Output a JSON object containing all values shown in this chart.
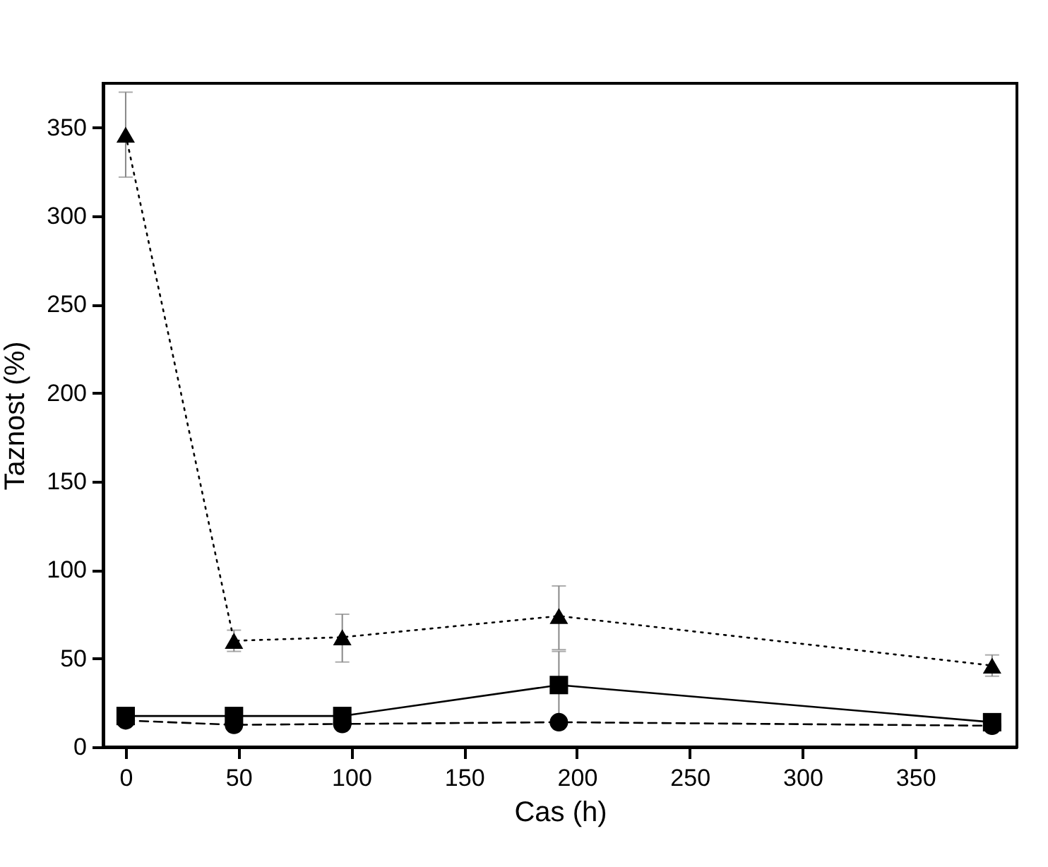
{
  "chart_data": {
    "type": "line",
    "xlabel": "Cas (h)",
    "ylabel": "Taznost (%)",
    "xlim": [
      -10,
      395
    ],
    "ylim": [
      0,
      375
    ],
    "xticks": [
      0,
      50,
      100,
      150,
      200,
      250,
      300,
      350
    ],
    "yticks": [
      0,
      50,
      100,
      150,
      200,
      250,
      300,
      350
    ],
    "grid": false,
    "series": [
      {
        "color": "#000000",
        "marker": "square",
        "line_style": "solid",
        "x": [
          0,
          48,
          96,
          192,
          384
        ],
        "values": [
          17.5,
          17.5,
          17.5,
          35,
          14
        ],
        "errors": [
          null,
          null,
          null,
          19,
          null
        ]
      },
      {
        "color": "#000000",
        "marker": "circle",
        "line_style": "dashed",
        "x": [
          0,
          48,
          96,
          192,
          384
        ],
        "values": [
          15,
          12.5,
          13,
          14,
          12
        ],
        "errors": [
          null,
          null,
          null,
          null,
          null
        ]
      },
      {
        "color": "#000000",
        "marker": "triangle",
        "line_style": "dotted",
        "x": [
          0,
          48,
          96,
          192,
          384
        ],
        "values": [
          346,
          60,
          62,
          74,
          46
        ],
        "errors": [
          [
            322,
            370
          ],
          6,
          [
            48,
            75
          ],
          [
            55,
            91
          ],
          6
        ]
      }
    ]
  }
}
